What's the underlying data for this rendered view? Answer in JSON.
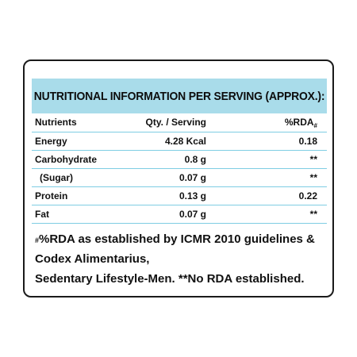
{
  "panel": {
    "title": "NUTRITIONAL INFORMATION PER SERVING (APPROX.):"
  },
  "table": {
    "headers": {
      "nutrients": "Nutrients",
      "qty": "Qty. / Serving",
      "rda": "%RDA",
      "rda_mark": "#"
    },
    "rows": [
      {
        "name": "Energy",
        "qty": "4.28 Kcal",
        "rda": "0.18"
      },
      {
        "name": "Carbohydrate",
        "qty": "0.8 g",
        "rda": "**"
      },
      {
        "name": "(Sugar)",
        "qty": "0.07 g",
        "rda": "**"
      },
      {
        "name": "Protein",
        "qty": "0.13 g",
        "rda": "0.22"
      },
      {
        "name": "Fat",
        "qty": "0.07 g",
        "rda": "**"
      }
    ]
  },
  "footnote": {
    "mark": "#",
    "line1": "%RDA as established by ICMR 2010 guidelines &",
    "line2": "Codex Alimentarius,",
    "line3": "Sedentary Lifestyle-Men. **No RDA established."
  },
  "colors": {
    "title_band": "#a9dcea",
    "row_divider": "#7fcde3",
    "border": "#1a1a1a"
  }
}
